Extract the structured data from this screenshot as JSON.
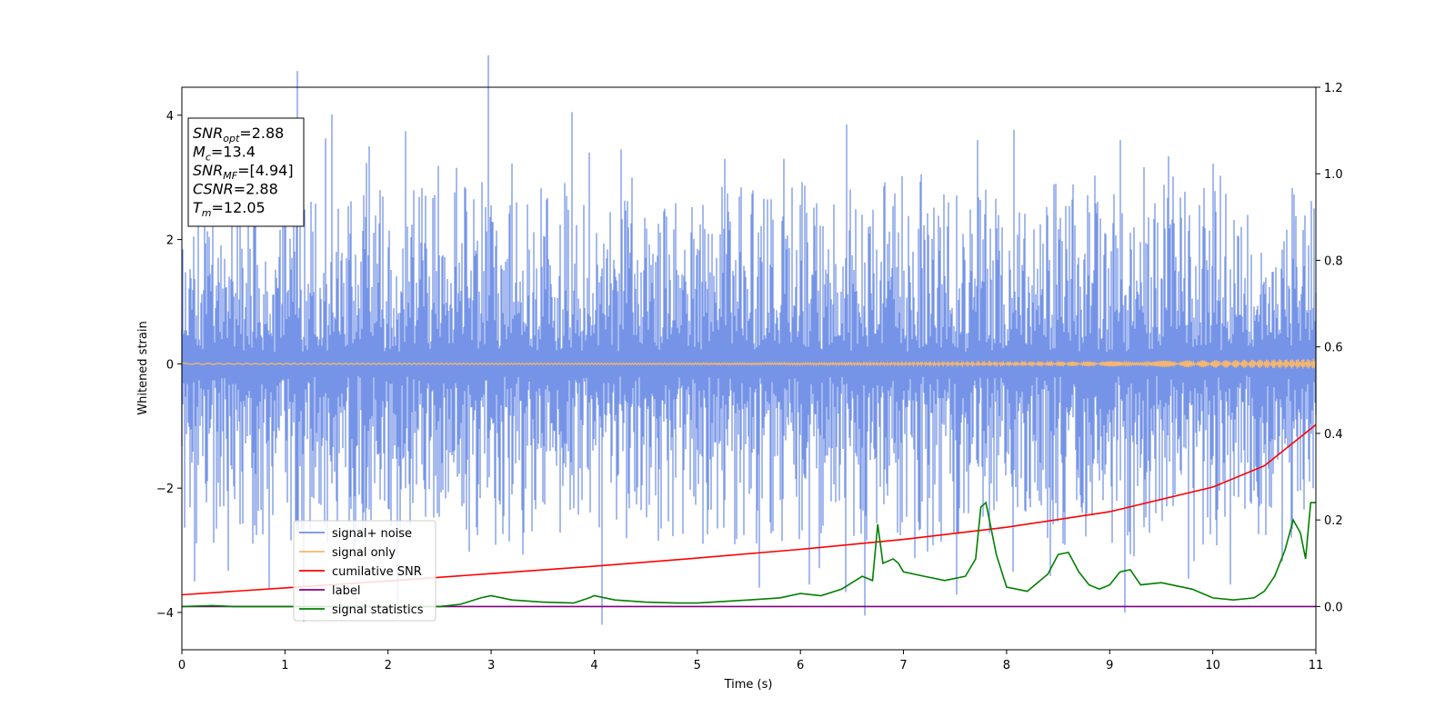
{
  "chart_data": {
    "type": "line",
    "xlabel": "Time (s)",
    "ylabel": "Whitened strain",
    "xlim": [
      0,
      11
    ],
    "ylim": [
      -4.6,
      4.45
    ],
    "y2lim": [
      -0.1,
      1.2
    ],
    "grid": false,
    "x_ticks": [
      "0",
      "1",
      "2",
      "3",
      "4",
      "5",
      "6",
      "7",
      "8",
      "9",
      "10",
      "11"
    ],
    "y_ticks": [
      "−4",
      "−2",
      "0",
      "2",
      "4"
    ],
    "y2_ticks": [
      "0.0",
      "0.2",
      "0.4",
      "0.6",
      "0.8",
      "1.0",
      "1.2"
    ],
    "colors": {
      "noise": "#6f8ee6",
      "signal": "#f5b66f",
      "cum_snr": "#ff0000",
      "label": "#800080",
      "stats": "#008000"
    },
    "annotation_lines": [
      {
        "name": "SNR",
        "sub": "opt",
        "value": "=2.88"
      },
      {
        "name": "M",
        "sub": "c",
        "value": "=13.4"
      },
      {
        "name": "SNR",
        "sub": "MF",
        "value": "=[4.94]"
      },
      {
        "name": "CSNR",
        "sub": "",
        "value": "=2.88"
      },
      {
        "name": "T",
        "sub": "m",
        "value": "=12.05"
      }
    ],
    "legend": {
      "placement": "lower-left",
      "entries": [
        "signal+ noise",
        "signal only",
        "cumilative SNR",
        "label",
        "signal statistics"
      ]
    },
    "series": [
      {
        "name": "signal+ noise",
        "axis": "left",
        "kind": "noise",
        "x_range": [
          0,
          11
        ],
        "mean": 0.0,
        "std": 0.95,
        "peaks": [
          {
            "x": 1.82,
            "y": 3.5
          },
          {
            "x": 3.78,
            "y": 4.05
          },
          {
            "x": 3.95,
            "y": 3.4
          },
          {
            "x": 6.45,
            "y": 3.85
          },
          {
            "x": 7.72,
            "y": 3.6
          },
          {
            "x": 9.1,
            "y": 3.6
          },
          {
            "x": 1.18,
            "y": -4.15
          },
          {
            "x": 9.15,
            "y": -4.0
          },
          {
            "x": 5.6,
            "y": -3.6
          },
          {
            "x": 0.12,
            "y": -3.5
          },
          {
            "x": 10.98,
            "y": 2.5
          }
        ]
      },
      {
        "name": "signal only",
        "axis": "left",
        "kind": "chirp",
        "x_range": [
          0,
          11
        ],
        "amplitude_start": 0.01,
        "amplitude_end": 0.08
      },
      {
        "name": "cumilative SNR",
        "axis": "right",
        "x": [
          0,
          1,
          2,
          3,
          4,
          5,
          6,
          7,
          8,
          9,
          10,
          10.5,
          11
        ],
        "y": [
          0.027,
          0.043,
          0.059,
          0.076,
          0.093,
          0.112,
          0.132,
          0.155,
          0.183,
          0.219,
          0.276,
          0.325,
          0.42
        ]
      },
      {
        "name": "label",
        "axis": "right",
        "x": [
          0,
          11
        ],
        "y": [
          0.0,
          0.0
        ]
      },
      {
        "name": "signal statistics",
        "axis": "right",
        "x": [
          0,
          0.3,
          0.5,
          1.0,
          1.5,
          2.0,
          2.5,
          2.7,
          2.9,
          3.0,
          3.2,
          3.5,
          3.8,
          3.95,
          4.0,
          4.2,
          4.5,
          4.8,
          5.0,
          5.5,
          5.8,
          6.0,
          6.2,
          6.4,
          6.5,
          6.6,
          6.7,
          6.75,
          6.8,
          6.9,
          6.95,
          7.0,
          7.2,
          7.4,
          7.6,
          7.7,
          7.75,
          7.8,
          7.85,
          7.9,
          8.0,
          8.1,
          8.2,
          8.4,
          8.5,
          8.6,
          8.7,
          8.8,
          8.9,
          9.0,
          9.1,
          9.2,
          9.3,
          9.5,
          9.8,
          10.0,
          10.2,
          10.4,
          10.5,
          10.6,
          10.7,
          10.78,
          10.85,
          10.9,
          10.95,
          11.0
        ],
        "y": [
          0.0,
          0.002,
          0.0,
          0.0,
          0.0,
          0.0,
          0.0,
          0.005,
          0.02,
          0.025,
          0.015,
          0.01,
          0.008,
          0.02,
          0.025,
          0.015,
          0.01,
          0.008,
          0.008,
          0.015,
          0.02,
          0.03,
          0.025,
          0.04,
          0.055,
          0.07,
          0.06,
          0.19,
          0.1,
          0.11,
          0.1,
          0.08,
          0.07,
          0.06,
          0.07,
          0.11,
          0.23,
          0.24,
          0.18,
          0.12,
          0.045,
          0.04,
          0.035,
          0.075,
          0.12,
          0.125,
          0.08,
          0.05,
          0.04,
          0.05,
          0.08,
          0.085,
          0.05,
          0.055,
          0.04,
          0.02,
          0.015,
          0.02,
          0.035,
          0.07,
          0.13,
          0.2,
          0.17,
          0.11,
          0.24,
          0.24
        ]
      }
    ]
  }
}
